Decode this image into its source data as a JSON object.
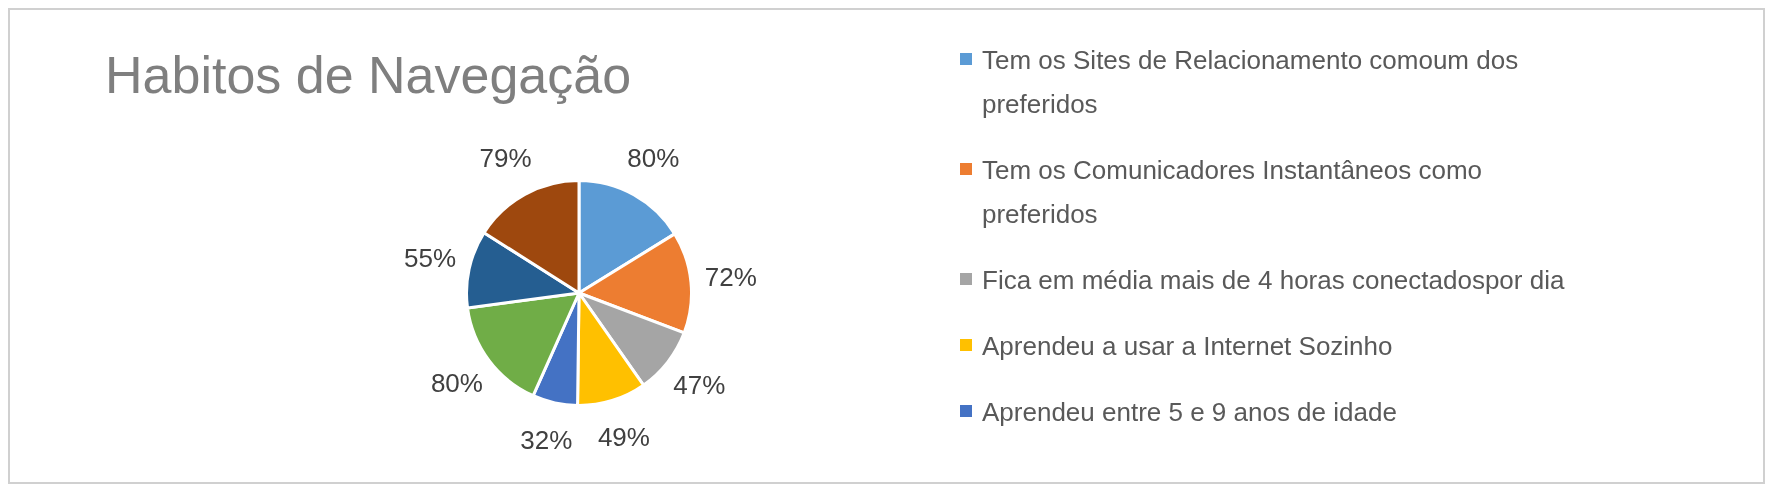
{
  "chart_data": {
    "type": "pie",
    "title": "Habitos de Navegação",
    "categories": [
      "Tem os Sites de Relacionamento comoum dos preferidos",
      "Tem os Comunicadores Instantâneos como preferidos",
      "Fica em média mais de 4 horas conectadospor dia",
      " Aprendeu a usar a Internet Sozinho",
      "Aprendeu entre 5 e 9 anos de idade",
      null,
      null,
      null
    ],
    "values": [
      80,
      72,
      47,
      49,
      32,
      80,
      55,
      79
    ],
    "colors": [
      "#5b9bd5",
      "#ed7d31",
      "#a5a5a5",
      "#ffc000",
      "#4472c4",
      "#70ad47",
      "#255e91",
      "#9e480e"
    ],
    "value_labels": [
      "80%",
      "72%",
      "47%",
      "49%",
      "32%",
      "80%",
      "55%",
      "79%"
    ],
    "legend": "right"
  }
}
